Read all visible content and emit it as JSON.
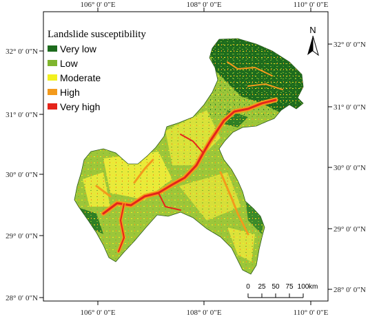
{
  "map": {
    "legend": {
      "title": "Landslide susceptibility",
      "classes": [
        {
          "label": "Very low",
          "color": "#1d6b1d"
        },
        {
          "label": "Low",
          "color": "#7fb52e"
        },
        {
          "label": "Moderate",
          "color": "#f2f01f"
        },
        {
          "label": "High",
          "color": "#f39a1c"
        },
        {
          "label": "Very high",
          "color": "#e5241a"
        }
      ]
    },
    "north_arrow": {
      "label": "N",
      "icon": "north-arrow-icon"
    },
    "scale_bar": {
      "ticks": [
        "0",
        "25",
        "50",
        "75",
        "100"
      ],
      "unit": "km"
    },
    "longitude_labels": [
      "106° 0′ 0″E",
      "108° 0′ 0″E",
      "110° 0′ 0″E"
    ],
    "latitude_labels": [
      "32° 0′ 0″N",
      "31° 0′ 0″N",
      "30° 0′ 0″N",
      "29° 0′ 0″N",
      "28° 0′ 0″N"
    ],
    "colors": {
      "frame": "#000000",
      "region_outline": "#2a5a1c"
    }
  }
}
